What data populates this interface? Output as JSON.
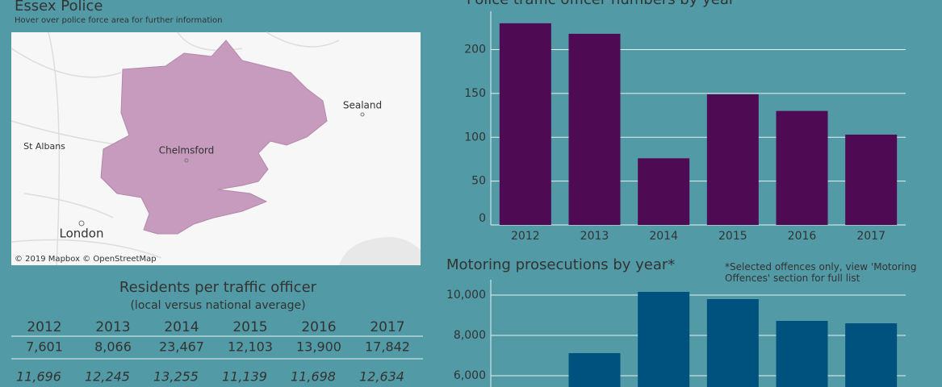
{
  "header": {
    "title": "Essex Police",
    "subtitle": "Hover over police force area for further information"
  },
  "map": {
    "places": [
      "Sealand",
      "St Albans",
      "Chelmsford",
      "London"
    ],
    "attribution": "© 2019 Mapbox © OpenStreetMap"
  },
  "table": {
    "title": "Residents per traffic officer",
    "subtitle": "(local versus national average)",
    "columns": [
      "2012",
      "2013",
      "2014",
      "2015",
      "2016",
      "2017"
    ],
    "rows": [
      [
        "7,601",
        "8,066",
        "23,467",
        "12,103",
        "13,900",
        "17,842"
      ],
      [
        "11,696",
        "12,245",
        "13,255",
        "11,139",
        "11,698",
        "12,634"
      ]
    ]
  },
  "chart_data": [
    {
      "type": "bar",
      "title": "Police traffic officer numbers by year",
      "categories": [
        "2012",
        "2013",
        "2014",
        "2015",
        "2016",
        "2017"
      ],
      "values": [
        230,
        218,
        76,
        149,
        130,
        103
      ],
      "color": "#4e0a52",
      "ylim": [
        0,
        240
      ],
      "yticks": [
        0,
        50,
        100,
        150,
        200
      ],
      "grid": true
    },
    {
      "type": "bar",
      "title": "Motoring prosecutions by year*",
      "annotation": "*Selected offences only, view 'Motoring Offences' section for full list",
      "values": [
        null,
        7120,
        10160,
        9800,
        8720,
        8600
      ],
      "color": "#00527e",
      "ylim": [
        5000,
        10600
      ],
      "yticks": [
        {
          "value": 6000,
          "label": "6,000"
        },
        {
          "value": 8000,
          "label": "8,000"
        },
        {
          "value": 10000,
          "label": "10,000"
        }
      ],
      "grid": true
    }
  ]
}
